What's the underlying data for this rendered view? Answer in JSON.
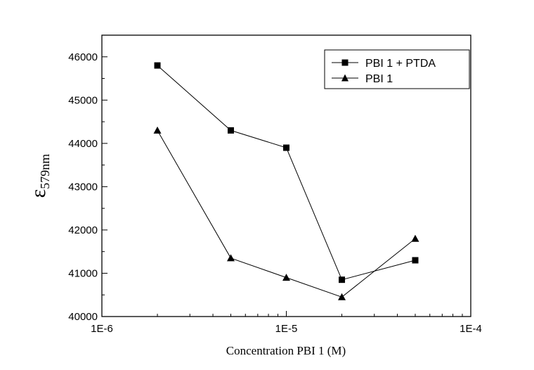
{
  "chart_data": {
    "type": "line",
    "xlabel": "Concentration PBI 1 (M)",
    "ylabel": {
      "symbol": "ε",
      "subscript": "579nm"
    },
    "xscale": "log",
    "xlim": [
      1e-06,
      0.0001
    ],
    "ylim": [
      40000,
      46500
    ],
    "x_ticks": [
      {
        "value": 1e-06,
        "label": "1E-6"
      },
      {
        "value": 1e-05,
        "label": "1E-5"
      },
      {
        "value": 0.0001,
        "label": "1E-4"
      }
    ],
    "y_ticks": [
      {
        "value": 40000,
        "label": "40000"
      },
      {
        "value": 41000,
        "label": "41000"
      },
      {
        "value": 42000,
        "label": "42000"
      },
      {
        "value": 43000,
        "label": "43000"
      },
      {
        "value": 44000,
        "label": "44000"
      },
      {
        "value": 45000,
        "label": "45000"
      },
      {
        "value": 46000,
        "label": "46000"
      }
    ],
    "legend_position": "top-right",
    "grid": false,
    "series": [
      {
        "name": "PBI 1 + PTDA",
        "marker": "square",
        "color": "#000000",
        "x": [
          2e-06,
          5e-06,
          1e-05,
          2e-05,
          5e-05
        ],
        "y": [
          45800,
          44300,
          43900,
          40850,
          41300
        ]
      },
      {
        "name": "PBI 1",
        "marker": "triangle",
        "color": "#000000",
        "x": [
          2e-06,
          5e-06,
          1e-05,
          2e-05,
          5e-05
        ],
        "y": [
          44300,
          41350,
          40900,
          40450,
          41800
        ]
      }
    ]
  }
}
